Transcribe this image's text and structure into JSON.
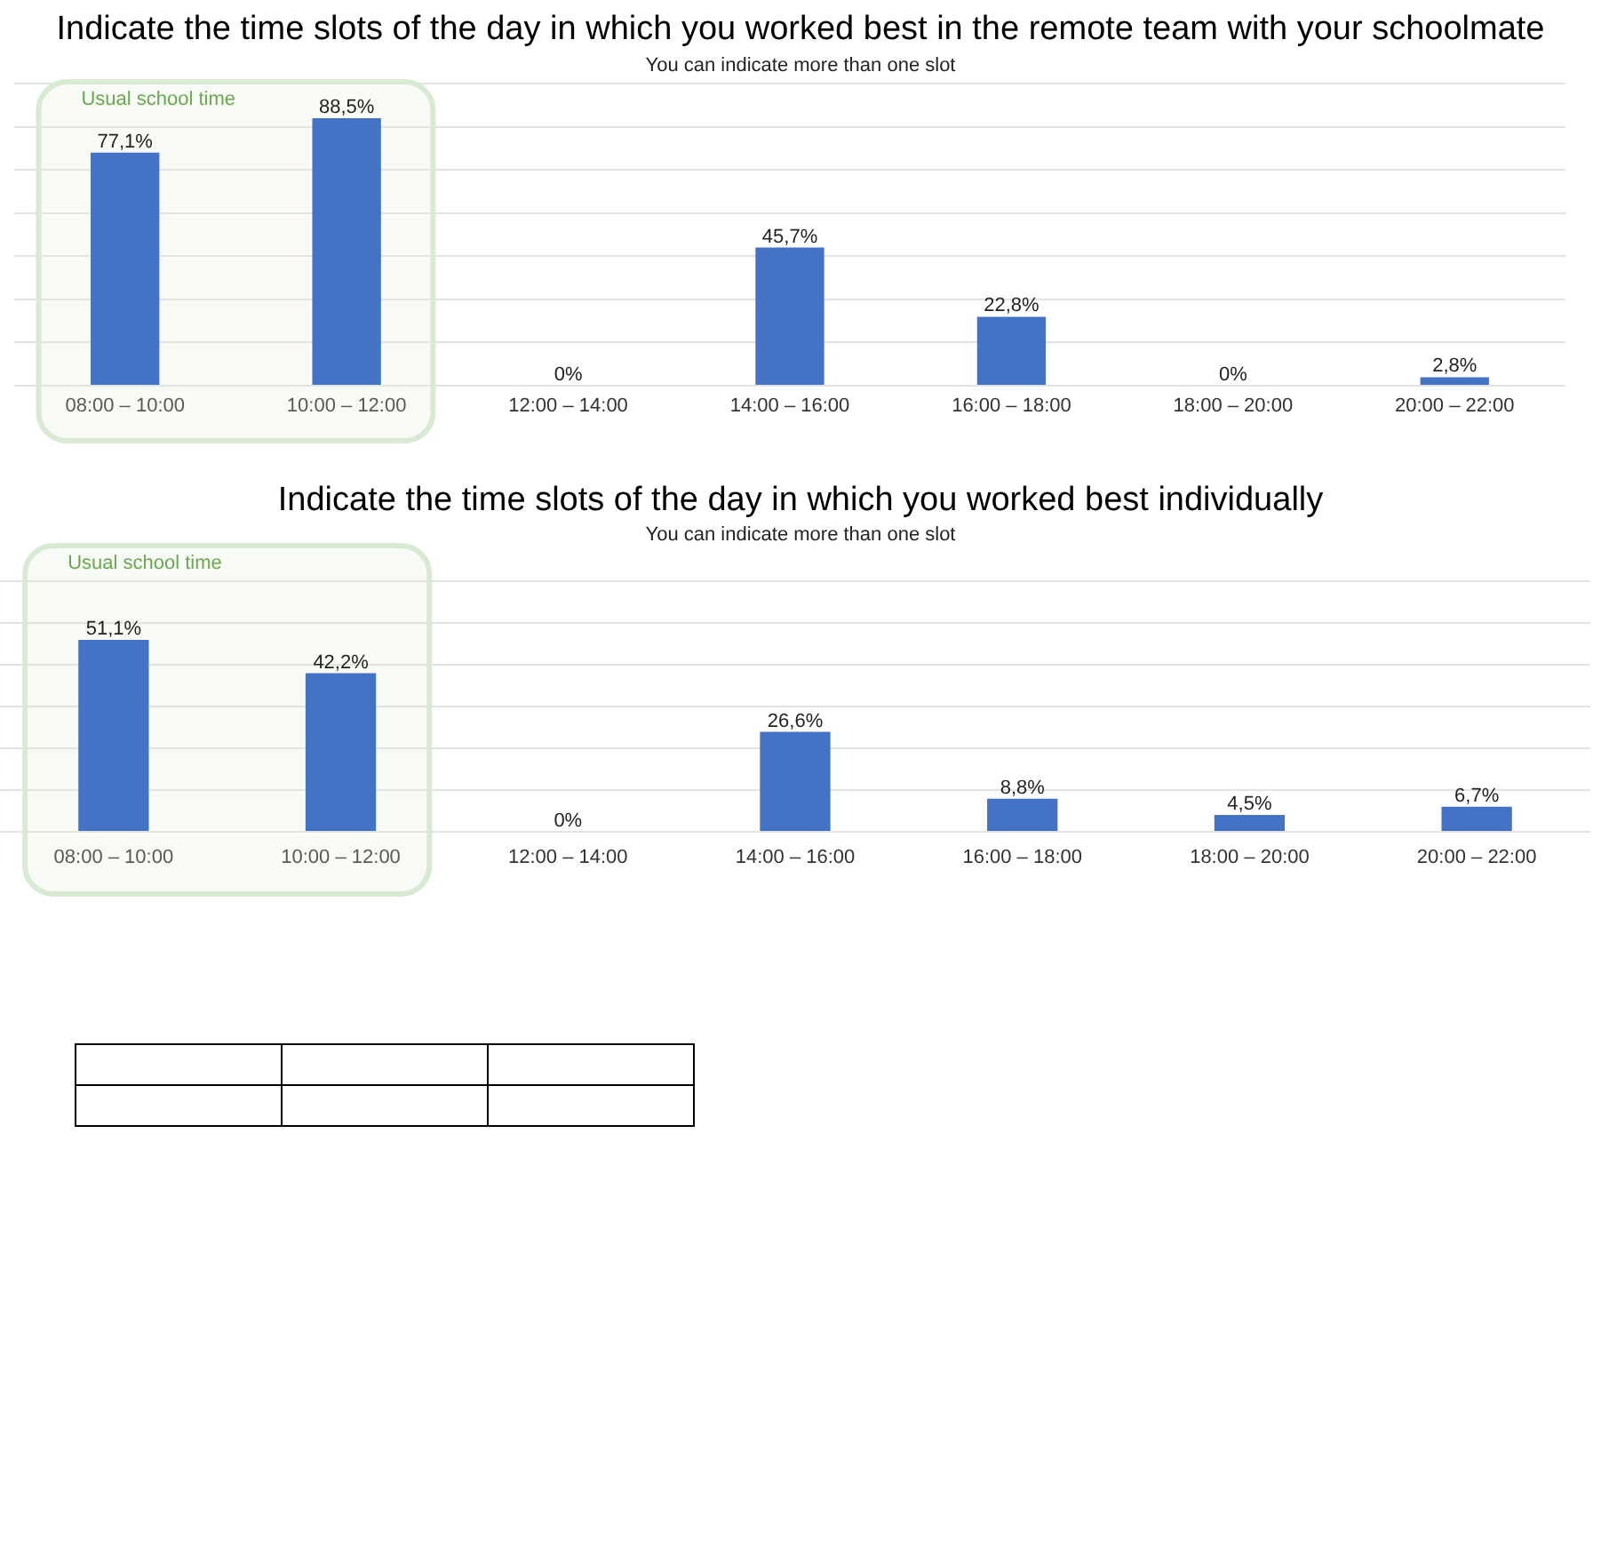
{
  "chart_data": [
    {
      "type": "bar",
      "title": "Indicate the time slots of the day in which you worked best in the remote team with your schoolmate",
      "subtitle": "You can indicate more than one slot",
      "categories": [
        "08:00 – 10:00",
        "10:00 – 12:00",
        "12:00 – 14:00",
        "14:00 – 16:00",
        "16:00 – 18:00",
        "18:00 – 20:00",
        "20:00 – 22:00"
      ],
      "values": [
        77.1,
        88.5,
        0,
        45.7,
        22.8,
        0,
        2.8
      ],
      "value_labels": [
        "77,1%",
        "88,5%",
        "0%",
        "45,7%",
        "22,8%",
        "0%",
        "2,8%"
      ],
      "color": "#4472c4",
      "ylim": [
        0,
        100
      ],
      "yticks": [
        {
          "value": 0,
          "label": null
        },
        {
          "value": 14.3,
          "label": null
        },
        {
          "value": 28.6,
          "label": null
        },
        {
          "value": 42.9,
          "label": null
        },
        {
          "value": 57.1,
          "label": null
        },
        {
          "value": 71.4,
          "label": null
        },
        {
          "value": 85.7,
          "label": null
        },
        {
          "value": 100,
          "label": null
        }
      ],
      "grid": "y",
      "tick_labels": "x",
      "bands": [
        {
          "axis": "x",
          "from": "08:00 – 10:00",
          "to": "10:00 – 12:00",
          "label": "Usual school time",
          "color": "#d9ead3"
        }
      ]
    },
    {
      "type": "bar",
      "title": "Indicate the time slots of the day in which you worked best individually",
      "subtitle": "You can indicate more than one slot",
      "categories": [
        "08:00 – 10:00",
        "10:00 – 12:00",
        "12:00 – 14:00",
        "14:00 – 16:00",
        "16:00 – 18:00",
        "18:00 – 20:00",
        "20:00 – 22:00"
      ],
      "values": [
        51.1,
        42.2,
        0,
        26.6,
        8.8,
        4.5,
        6.7
      ],
      "value_labels": [
        "51,1%",
        "42,2%",
        "0%",
        "26,6%",
        "8,8%",
        "4,5%",
        "6,7%"
      ],
      "color": "#4472c4",
      "ylim": [
        0,
        66.7
      ],
      "yticks": [
        {
          "value": 0,
          "label": null
        },
        {
          "value": 11.1,
          "label": null
        },
        {
          "value": 22.2,
          "label": null
        },
        {
          "value": 33.3,
          "label": null
        },
        {
          "value": 44.4,
          "label": null
        },
        {
          "value": 55.6,
          "label": null
        },
        {
          "value": 66.7,
          "label": null
        }
      ],
      "grid": "y",
      "tick_labels": "x",
      "bands": [
        {
          "axis": "x",
          "from": "08:00 – 10:00",
          "to": "10:00 – 12:00",
          "label": "Usual school time",
          "color": "#d9ead3"
        }
      ]
    }
  ]
}
